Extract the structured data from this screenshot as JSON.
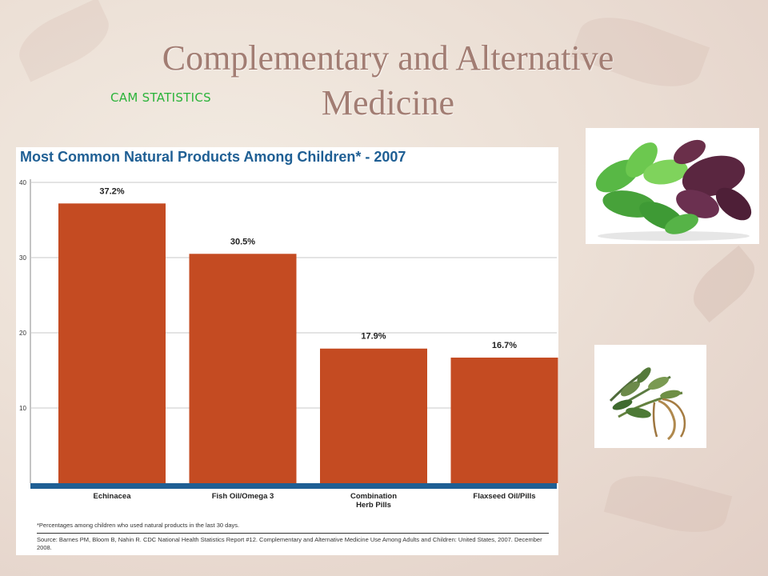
{
  "slide": {
    "title": "Complementary and Alternative Medicine",
    "subtitle": "CAM STATISTICS"
  },
  "chart": {
    "heading": "Most Common Natural Products Among Children* - 2007",
    "footnote": "*Percentages among children who used natural products in the last 30 days.",
    "source": "Source: Barnes PM, Bloom B, Nahin R. CDC National Health Statistics Report #12. Complementary and Alternative Medicine Use Among Adults and Children: United States, 2007. December 2008."
  },
  "colors": {
    "bar": "#c44b22",
    "baseline": "#1f5f94",
    "heading": "#1f5f94",
    "title": "#a27d73",
    "subtitle": "#2bb33a"
  },
  "chart_data": {
    "type": "bar",
    "title": "Most Common Natural Products Among Children* - 2007",
    "categories": [
      "Echinacea",
      "Fish Oil/Omega 3",
      "Combination Herb Pills",
      "Flaxseed Oil/Pills"
    ],
    "category_lines": [
      [
        "Echinacea"
      ],
      [
        "Fish Oil/Omega 3"
      ],
      [
        "Combination",
        "Herb Pills"
      ],
      [
        "Flaxseed Oil/Pills"
      ]
    ],
    "values": [
      37.2,
      30.5,
      17.9,
      16.7
    ],
    "value_labels": [
      "37.2%",
      "30.5%",
      "17.9%",
      "16.7%"
    ],
    "yticks": [
      10,
      20,
      30,
      40
    ],
    "ylim": [
      0,
      40
    ],
    "grid": true
  }
}
